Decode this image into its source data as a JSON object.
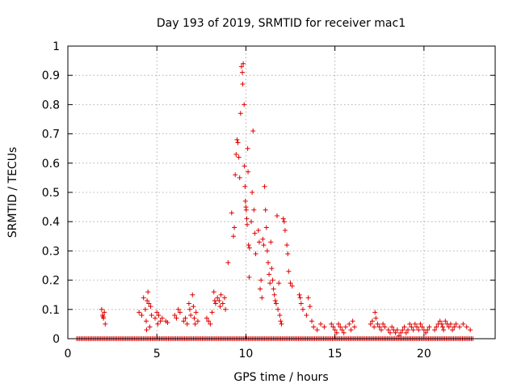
{
  "chart_data": {
    "type": "scatter",
    "title": "Day 193 of 2019, SRMTID for receiver mac1",
    "xlabel": "GPS time / hours",
    "ylabel": "SRMTID / TECUs",
    "xlim": [
      0,
      24
    ],
    "ylim": [
      0,
      1
    ],
    "xticks": [
      0,
      5,
      10,
      15,
      20
    ],
    "xtick_labels": [
      "0",
      "5",
      "10",
      "15",
      "20"
    ],
    "yticks": [
      0,
      0.1,
      0.2,
      0.3,
      0.4,
      0.5,
      0.6,
      0.7,
      0.8,
      0.9,
      1
    ],
    "ytick_labels": [
      "0",
      "0.1",
      "0.2",
      "0.3",
      "0.4",
      "0.5",
      "0.6",
      "0.7",
      "0.8",
      "0.9",
      "1"
    ],
    "grid": true,
    "marker": "+",
    "color": "#e00000",
    "zero_baseline_range": [
      0.5,
      22.8
    ],
    "series": [
      {
        "name": "SRMTID",
        "points": [
          [
            1.9,
            0.1
          ],
          [
            1.95,
            0.08
          ],
          [
            2.0,
            0.07
          ],
          [
            2.05,
            0.09
          ],
          [
            2.1,
            0.05
          ],
          [
            1.98,
            0.075
          ],
          [
            4.0,
            0.09
          ],
          [
            4.15,
            0.08
          ],
          [
            4.25,
            0.14
          ],
          [
            4.35,
            0.1
          ],
          [
            4.4,
            0.06
          ],
          [
            4.45,
            0.13
          ],
          [
            4.5,
            0.16
          ],
          [
            4.55,
            0.12
          ],
          [
            4.6,
            0.04
          ],
          [
            4.42,
            0.03
          ],
          [
            4.65,
            0.11
          ],
          [
            4.7,
            0.08
          ],
          [
            4.9,
            0.07
          ],
          [
            5.0,
            0.09
          ],
          [
            5.05,
            0.05
          ],
          [
            5.1,
            0.08
          ],
          [
            5.2,
            0.06
          ],
          [
            5.3,
            0.07
          ],
          [
            5.5,
            0.06
          ],
          [
            5.6,
            0.055
          ],
          [
            6.0,
            0.08
          ],
          [
            6.1,
            0.07
          ],
          [
            6.2,
            0.1
          ],
          [
            6.3,
            0.09
          ],
          [
            6.5,
            0.06
          ],
          [
            6.6,
            0.07
          ],
          [
            6.7,
            0.05
          ],
          [
            6.8,
            0.12
          ],
          [
            6.85,
            0.1
          ],
          [
            6.9,
            0.08
          ],
          [
            7.0,
            0.15
          ],
          [
            7.05,
            0.11
          ],
          [
            7.1,
            0.07
          ],
          [
            7.15,
            0.05
          ],
          [
            7.2,
            0.09
          ],
          [
            7.3,
            0.06
          ],
          [
            7.8,
            0.07
          ],
          [
            7.9,
            0.06
          ],
          [
            8.0,
            0.05
          ],
          [
            8.1,
            0.09
          ],
          [
            8.2,
            0.16
          ],
          [
            8.25,
            0.13
          ],
          [
            8.3,
            0.12
          ],
          [
            8.4,
            0.14
          ],
          [
            8.5,
            0.13
          ],
          [
            8.55,
            0.11
          ],
          [
            8.6,
            0.15
          ],
          [
            8.7,
            0.12
          ],
          [
            8.8,
            0.14
          ],
          [
            8.85,
            0.1
          ],
          [
            9.0,
            0.26
          ],
          [
            9.2,
            0.43
          ],
          [
            9.3,
            0.35
          ],
          [
            9.35,
            0.38
          ],
          [
            9.4,
            0.56
          ],
          [
            9.45,
            0.63
          ],
          [
            9.5,
            0.68
          ],
          [
            9.55,
            0.67
          ],
          [
            9.6,
            0.62
          ],
          [
            9.65,
            0.55
          ],
          [
            9.7,
            0.77
          ],
          [
            9.75,
            0.93
          ],
          [
            9.8,
            0.91
          ],
          [
            9.82,
            0.87
          ],
          [
            9.85,
            0.94
          ],
          [
            9.9,
            0.8
          ],
          [
            9.92,
            0.59
          ],
          [
            9.95,
            0.52
          ],
          [
            9.97,
            0.47
          ],
          [
            10.0,
            0.45
          ],
          [
            10.02,
            0.44
          ],
          [
            10.05,
            0.41
          ],
          [
            10.07,
            0.39
          ],
          [
            10.1,
            0.65
          ],
          [
            10.12,
            0.57
          ],
          [
            10.15,
            0.32
          ],
          [
            10.18,
            0.21
          ],
          [
            10.2,
            0.31
          ],
          [
            10.3,
            0.4
          ],
          [
            10.35,
            0.5
          ],
          [
            10.4,
            0.71
          ],
          [
            10.45,
            0.44
          ],
          [
            10.5,
            0.36
          ],
          [
            10.55,
            0.29
          ],
          [
            10.7,
            0.37
          ],
          [
            10.75,
            0.33
          ],
          [
            10.8,
            0.17
          ],
          [
            10.85,
            0.2
          ],
          [
            10.9,
            0.14
          ],
          [
            10.95,
            0.34
          ],
          [
            11.0,
            0.32
          ],
          [
            11.05,
            0.52
          ],
          [
            11.1,
            0.44
          ],
          [
            11.15,
            0.38
          ],
          [
            11.2,
            0.3
          ],
          [
            11.25,
            0.26
          ],
          [
            11.3,
            0.22
          ],
          [
            11.35,
            0.19
          ],
          [
            11.4,
            0.33
          ],
          [
            11.45,
            0.24
          ],
          [
            11.5,
            0.2
          ],
          [
            11.55,
            0.17
          ],
          [
            11.6,
            0.15
          ],
          [
            11.65,
            0.13
          ],
          [
            11.7,
            0.12
          ],
          [
            11.75,
            0.42
          ],
          [
            11.8,
            0.1
          ],
          [
            11.85,
            0.19
          ],
          [
            11.9,
            0.08
          ],
          [
            11.95,
            0.06
          ],
          [
            12.0,
            0.05
          ],
          [
            12.1,
            0.41
          ],
          [
            12.15,
            0.4
          ],
          [
            12.2,
            0.37
          ],
          [
            12.3,
            0.32
          ],
          [
            12.35,
            0.29
          ],
          [
            12.4,
            0.23
          ],
          [
            12.5,
            0.19
          ],
          [
            12.6,
            0.18
          ],
          [
            13.0,
            0.15
          ],
          [
            13.05,
            0.14
          ],
          [
            13.1,
            0.12
          ],
          [
            13.2,
            0.1
          ],
          [
            13.4,
            0.08
          ],
          [
            13.5,
            0.14
          ],
          [
            13.6,
            0.11
          ],
          [
            13.7,
            0.06
          ],
          [
            13.8,
            0.04
          ],
          [
            14.0,
            0.03
          ],
          [
            14.2,
            0.05
          ],
          [
            14.4,
            0.04
          ],
          [
            14.8,
            0.05
          ],
          [
            14.9,
            0.04
          ],
          [
            15.0,
            0.03
          ],
          [
            15.1,
            0.02
          ],
          [
            15.2,
            0.05
          ],
          [
            15.3,
            0.04
          ],
          [
            15.4,
            0.03
          ],
          [
            15.5,
            0.02
          ],
          [
            15.6,
            0.04
          ],
          [
            15.8,
            0.05
          ],
          [
            15.9,
            0.03
          ],
          [
            16.0,
            0.06
          ],
          [
            16.1,
            0.04
          ],
          [
            17.0,
            0.05
          ],
          [
            17.1,
            0.06
          ],
          [
            17.2,
            0.04
          ],
          [
            17.25,
            0.09
          ],
          [
            17.3,
            0.07
          ],
          [
            17.4,
            0.05
          ],
          [
            17.5,
            0.04
          ],
          [
            17.6,
            0.03
          ],
          [
            17.7,
            0.05
          ],
          [
            17.8,
            0.04
          ],
          [
            18.0,
            0.03
          ],
          [
            18.1,
            0.02
          ],
          [
            18.2,
            0.04
          ],
          [
            18.3,
            0.03
          ],
          [
            18.4,
            0.02
          ],
          [
            18.5,
            0.03
          ],
          [
            18.6,
            0.01
          ],
          [
            18.7,
            0.02
          ],
          [
            18.8,
            0.03
          ],
          [
            18.9,
            0.04
          ],
          [
            19.0,
            0.02
          ],
          [
            19.1,
            0.03
          ],
          [
            19.2,
            0.05
          ],
          [
            19.3,
            0.04
          ],
          [
            19.4,
            0.03
          ],
          [
            19.5,
            0.05
          ],
          [
            19.6,
            0.04
          ],
          [
            19.7,
            0.03
          ],
          [
            19.8,
            0.05
          ],
          [
            19.9,
            0.04
          ],
          [
            20.0,
            0.03
          ],
          [
            20.1,
            0.02
          ],
          [
            20.2,
            0.03
          ],
          [
            20.3,
            0.04
          ],
          [
            20.6,
            0.03
          ],
          [
            20.7,
            0.04
          ],
          [
            20.8,
            0.05
          ],
          [
            20.9,
            0.06
          ],
          [
            21.0,
            0.05
          ],
          [
            21.05,
            0.04
          ],
          [
            21.1,
            0.03
          ],
          [
            21.2,
            0.06
          ],
          [
            21.3,
            0.05
          ],
          [
            21.4,
            0.04
          ],
          [
            21.5,
            0.05
          ],
          [
            21.6,
            0.03
          ],
          [
            21.7,
            0.04
          ],
          [
            21.8,
            0.05
          ],
          [
            22.0,
            0.04
          ],
          [
            22.2,
            0.05
          ],
          [
            22.4,
            0.04
          ],
          [
            22.6,
            0.03
          ]
        ]
      }
    ]
  }
}
